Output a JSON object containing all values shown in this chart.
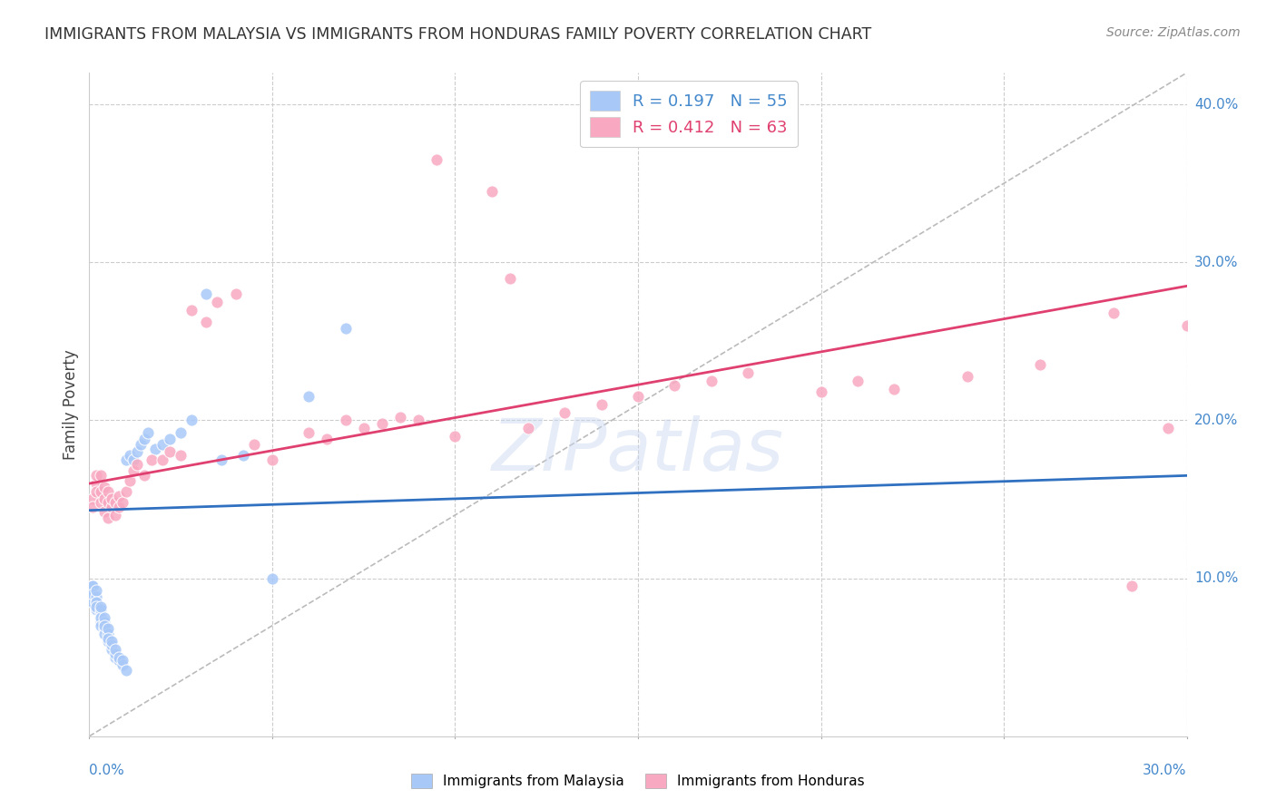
{
  "title": "IMMIGRANTS FROM MALAYSIA VS IMMIGRANTS FROM HONDURAS FAMILY POVERTY CORRELATION CHART",
  "source": "Source: ZipAtlas.com",
  "ylabel": "Family Poverty",
  "xlim": [
    0,
    0.3
  ],
  "ylim": [
    0,
    0.42
  ],
  "malaysia_color": "#A8C8F8",
  "honduras_color": "#F8A8C0",
  "malaysia_trend_color": "#3070C0",
  "honduras_trend_color": "#E04070",
  "diagonal_color": "#BBBBBB",
  "watermark": "ZIPatlas",
  "malaysia_x": [
    0.001,
    0.001,
    0.001,
    0.001,
    0.001,
    0.002,
    0.002,
    0.002,
    0.002,
    0.002,
    0.002,
    0.003,
    0.003,
    0.003,
    0.003,
    0.003,
    0.003,
    0.004,
    0.004,
    0.004,
    0.004,
    0.004,
    0.005,
    0.005,
    0.005,
    0.005,
    0.006,
    0.006,
    0.006,
    0.007,
    0.007,
    0.007,
    0.008,
    0.008,
    0.009,
    0.009,
    0.01,
    0.01,
    0.011,
    0.012,
    0.013,
    0.014,
    0.015,
    0.016,
    0.018,
    0.02,
    0.022,
    0.025,
    0.028,
    0.032,
    0.036,
    0.042,
    0.05,
    0.06,
    0.07
  ],
  "malaysia_y": [
    0.09,
    0.095,
    0.095,
    0.085,
    0.09,
    0.08,
    0.085,
    0.088,
    0.092,
    0.085,
    0.082,
    0.072,
    0.078,
    0.08,
    0.075,
    0.082,
    0.07,
    0.068,
    0.072,
    0.075,
    0.065,
    0.07,
    0.06,
    0.065,
    0.068,
    0.062,
    0.055,
    0.058,
    0.06,
    0.05,
    0.052,
    0.055,
    0.048,
    0.05,
    0.045,
    0.048,
    0.042,
    0.175,
    0.178,
    0.175,
    0.18,
    0.185,
    0.188,
    0.192,
    0.182,
    0.185,
    0.188,
    0.192,
    0.2,
    0.28,
    0.175,
    0.178,
    0.1,
    0.215,
    0.258
  ],
  "honduras_x": [
    0.001,
    0.001,
    0.002,
    0.002,
    0.002,
    0.003,
    0.003,
    0.003,
    0.004,
    0.004,
    0.004,
    0.005,
    0.005,
    0.005,
    0.006,
    0.006,
    0.007,
    0.007,
    0.008,
    0.008,
    0.009,
    0.01,
    0.011,
    0.012,
    0.013,
    0.015,
    0.017,
    0.02,
    0.022,
    0.025,
    0.028,
    0.032,
    0.035,
    0.04,
    0.045,
    0.05,
    0.06,
    0.065,
    0.07,
    0.075,
    0.08,
    0.085,
    0.09,
    0.095,
    0.1,
    0.11,
    0.115,
    0.12,
    0.13,
    0.14,
    0.15,
    0.16,
    0.17,
    0.18,
    0.2,
    0.21,
    0.22,
    0.24,
    0.26,
    0.28,
    0.285,
    0.295,
    0.3
  ],
  "honduras_y": [
    0.15,
    0.145,
    0.16,
    0.155,
    0.165,
    0.148,
    0.155,
    0.165,
    0.142,
    0.15,
    0.158,
    0.138,
    0.148,
    0.155,
    0.145,
    0.15,
    0.14,
    0.148,
    0.145,
    0.152,
    0.148,
    0.155,
    0.162,
    0.168,
    0.172,
    0.165,
    0.175,
    0.175,
    0.18,
    0.178,
    0.27,
    0.262,
    0.275,
    0.28,
    0.185,
    0.175,
    0.192,
    0.188,
    0.2,
    0.195,
    0.198,
    0.202,
    0.2,
    0.365,
    0.19,
    0.345,
    0.29,
    0.195,
    0.205,
    0.21,
    0.215,
    0.222,
    0.225,
    0.23,
    0.218,
    0.225,
    0.22,
    0.228,
    0.235,
    0.268,
    0.095,
    0.195,
    0.26
  ],
  "malaysia_trend_x": [
    0.0,
    0.3
  ],
  "malaysia_trend_y": [
    0.143,
    0.165
  ],
  "honduras_trend_x": [
    0.0,
    0.3
  ],
  "honduras_trend_y": [
    0.16,
    0.285
  ]
}
